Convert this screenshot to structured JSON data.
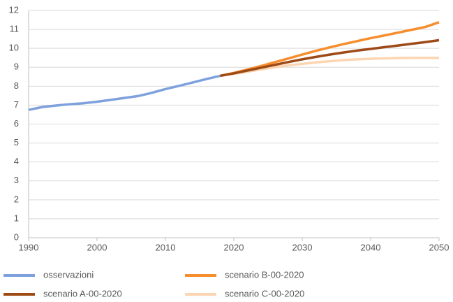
{
  "chart_data": {
    "type": "line",
    "series": [
      {
        "name": "osservazioni",
        "color": "#7ea1dd",
        "x": [
          1990,
          1992,
          1994,
          1996,
          1998,
          2000,
          2002,
          2004,
          2006,
          2008,
          2010,
          2012,
          2014,
          2016,
          2018
        ],
        "values": [
          6.75,
          6.9,
          6.98,
          7.05,
          7.1,
          7.18,
          7.28,
          7.38,
          7.48,
          7.65,
          7.85,
          8.02,
          8.2,
          8.38,
          8.55
        ]
      },
      {
        "name": "scenario A-00-2020",
        "color": "#9e4a17",
        "x": [
          2018,
          2020,
          2022,
          2024,
          2026,
          2028,
          2030,
          2032,
          2034,
          2036,
          2038,
          2040,
          2042,
          2044,
          2046,
          2048,
          2050
        ],
        "values": [
          8.55,
          8.68,
          8.83,
          8.98,
          9.13,
          9.28,
          9.42,
          9.55,
          9.67,
          9.78,
          9.88,
          9.97,
          10.06,
          10.15,
          10.24,
          10.33,
          10.43
        ]
      },
      {
        "name": "scenario B-00-2020",
        "color": "#f68e2e",
        "x": [
          2018,
          2020,
          2022,
          2024,
          2026,
          2028,
          2030,
          2032,
          2034,
          2036,
          2038,
          2040,
          2042,
          2044,
          2046,
          2048,
          2050
        ],
        "values": [
          8.55,
          8.7,
          8.88,
          9.07,
          9.27,
          9.47,
          9.67,
          9.87,
          10.05,
          10.22,
          10.38,
          10.54,
          10.68,
          10.83,
          10.98,
          11.13,
          11.38
        ]
      },
      {
        "name": "scenario C-00-2020",
        "color": "#fcd5b2",
        "x": [
          2018,
          2020,
          2022,
          2024,
          2026,
          2028,
          2030,
          2032,
          2034,
          2036,
          2038,
          2040,
          2042,
          2044,
          2046,
          2048,
          2050
        ],
        "values": [
          8.55,
          8.65,
          8.77,
          8.89,
          9.0,
          9.1,
          9.18,
          9.26,
          9.32,
          9.38,
          9.42,
          9.45,
          9.47,
          9.49,
          9.5,
          9.5,
          9.5
        ]
      }
    ],
    "xlim": [
      1990,
      2050
    ],
    "xticks": [
      1990,
      2000,
      2010,
      2020,
      2030,
      2040,
      2050
    ],
    "ylim": [
      0,
      12
    ],
    "yticks": [
      0,
      1,
      2,
      3,
      4,
      5,
      6,
      7,
      8,
      9,
      10,
      11,
      12
    ],
    "grid": true,
    "legend": "bottom"
  }
}
